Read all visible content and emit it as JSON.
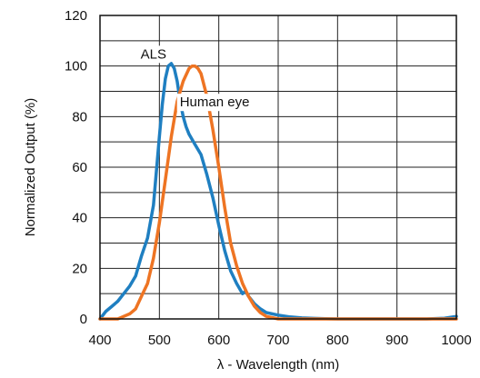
{
  "chart_data": {
    "type": "line",
    "xlabel": "λ - Wavelength (nm)",
    "ylabel": "Normalized Output (%)",
    "xlim": [
      400,
      1000
    ],
    "ylim": [
      0,
      120
    ],
    "x_ticks": [
      "400",
      "500",
      "600",
      "700",
      "800",
      "900",
      "1000"
    ],
    "y_ticks": [
      "0",
      "20",
      "40",
      "60",
      "80",
      "100",
      "120"
    ],
    "grid": true,
    "series": [
      {
        "name": "ALS",
        "color": "#1f7fc1",
        "x": [
          400,
          410,
          420,
          430,
          440,
          450,
          460,
          470,
          480,
          490,
          500,
          505,
          510,
          515,
          520,
          525,
          530,
          535,
          540,
          545,
          550,
          560,
          570,
          580,
          590,
          600,
          610,
          620,
          630,
          640,
          645,
          650,
          660,
          670,
          680,
          700,
          720,
          740,
          760,
          780,
          800,
          850,
          900,
          950,
          980,
          1000
        ],
        "y": [
          0,
          3,
          5,
          7,
          10,
          13,
          17,
          25,
          32,
          45,
          72,
          85,
          95,
          100,
          101,
          99,
          94,
          86,
          80,
          76,
          73,
          69,
          65,
          57,
          48,
          37,
          27,
          19,
          14,
          10,
          11,
          9,
          6,
          4,
          2.5,
          1.5,
          0.8,
          0.4,
          0.2,
          0.1,
          0,
          0,
          0,
          0,
          0.3,
          1
        ]
      },
      {
        "name": "Human eye",
        "color": "#ee7423",
        "x": [
          400,
          430,
          440,
          450,
          460,
          470,
          480,
          490,
          500,
          510,
          520,
          530,
          540,
          550,
          555,
          560,
          565,
          570,
          580,
          590,
          600,
          610,
          620,
          630,
          640,
          650,
          660,
          670,
          680,
          690,
          700,
          750,
          800,
          900,
          1000
        ],
        "y": [
          0,
          0,
          1,
          2,
          4,
          9,
          14,
          24,
          38,
          55,
          72,
          86,
          94,
          99,
          100,
          100,
          99,
          97,
          88,
          75,
          60,
          44,
          30,
          21,
          14,
          9,
          5,
          2.5,
          1,
          0.5,
          0,
          0,
          0,
          0,
          0
        ]
      }
    ],
    "annotations": [
      {
        "text": "ALS",
        "x": 490,
        "y": 103
      },
      {
        "text": "Human eye",
        "x": 593,
        "y": 84
      }
    ]
  }
}
